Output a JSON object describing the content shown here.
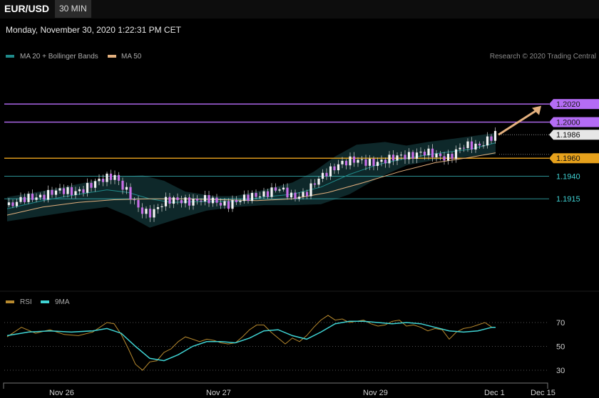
{
  "header": {
    "symbol": "EUR/USD",
    "timeframe": "30 MIN"
  },
  "timestamp": "Monday, November 30, 2020 1:22:31 PM CET",
  "legend": {
    "main": [
      {
        "label": "MA 20 + Bollinger Bands",
        "color": "#1f8a8a"
      },
      {
        "label": "MA 50",
        "color": "#e3b07e"
      }
    ],
    "rsi": [
      {
        "label": "RSI",
        "color": "#b88a2e"
      },
      {
        "label": "9MA",
        "color": "#3fd4d4"
      }
    ]
  },
  "watermark": "Research © 2020 Trading Central",
  "chart_data": {
    "type": "line",
    "instrument": "EUR/USD",
    "interval": "30 MIN",
    "price_axis": {
      "min": 1.183,
      "max": 1.2056
    },
    "levels": [
      {
        "value": 1.202,
        "label": "1.2020",
        "color": "#b46cf5",
        "kind": "resistance"
      },
      {
        "value": 1.2,
        "label": "1.2000",
        "color": "#b46cf5",
        "kind": "resistance"
      },
      {
        "value": 1.1986,
        "label": "1.1986",
        "color": "#dddddd",
        "kind": "current"
      },
      {
        "value": 1.196,
        "label": "1.1960",
        "color": "#e6a11c",
        "kind": "pivot"
      },
      {
        "value": 1.194,
        "label": "1.1940",
        "color": "#3ecfd1",
        "kind": "support"
      },
      {
        "value": 1.1915,
        "label": "1.1915",
        "color": "#3ecfd1",
        "kind": "support"
      }
    ],
    "price_path": [
      [
        0,
        1.1908
      ],
      [
        6,
        1.1915
      ],
      [
        12,
        1.1922
      ],
      [
        18,
        1.1923
      ],
      [
        24,
        1.193
      ],
      [
        30,
        1.1943
      ],
      [
        34,
        1.192
      ],
      [
        37,
        1.1902
      ],
      [
        40,
        1.19
      ],
      [
        44,
        1.1911
      ],
      [
        50,
        1.1914
      ],
      [
        56,
        1.1913
      ],
      [
        62,
        1.191
      ],
      [
        66,
        1.1913
      ],
      [
        70,
        1.192
      ],
      [
        76,
        1.1925
      ],
      [
        80,
        1.1918
      ],
      [
        84,
        1.1922
      ],
      [
        90,
        1.1946
      ],
      [
        93,
        1.1955
      ],
      [
        97,
        1.1956
      ],
      [
        102,
        1.1957
      ],
      [
        104,
        1.1956
      ],
      [
        107,
        1.1957
      ],
      [
        111,
        1.1964
      ],
      [
        116,
        1.1965
      ],
      [
        119,
        1.1964
      ],
      [
        124,
        1.1962
      ],
      [
        128,
        1.1972
      ],
      [
        132,
        1.1975
      ],
      [
        137,
        1.1986
      ]
    ],
    "ma50": [
      [
        0,
        1.1897
      ],
      [
        10,
        1.1906
      ],
      [
        20,
        1.1911
      ],
      [
        30,
        1.1914
      ],
      [
        40,
        1.1915
      ],
      [
        50,
        1.1915
      ],
      [
        60,
        1.1914
      ],
      [
        70,
        1.1913
      ],
      [
        80,
        1.1915
      ],
      [
        90,
        1.1922
      ],
      [
        100,
        1.1933
      ],
      [
        110,
        1.1945
      ],
      [
        120,
        1.1955
      ],
      [
        130,
        1.1961
      ],
      [
        137,
        1.1966
      ]
    ],
    "ma20": [
      [
        0,
        1.1904
      ],
      [
        10,
        1.1913
      ],
      [
        20,
        1.192
      ],
      [
        28,
        1.1925
      ],
      [
        34,
        1.1922
      ],
      [
        40,
        1.1915
      ],
      [
        46,
        1.1911
      ],
      [
        56,
        1.1912
      ],
      [
        64,
        1.1912
      ],
      [
        72,
        1.1917
      ],
      [
        80,
        1.192
      ],
      [
        88,
        1.1928
      ],
      [
        96,
        1.1942
      ],
      [
        104,
        1.1953
      ],
      [
        112,
        1.196
      ],
      [
        120,
        1.1965
      ],
      [
        130,
        1.197
      ],
      [
        137,
        1.1977
      ]
    ],
    "bb_upper": [
      [
        0,
        1.1917
      ],
      [
        12,
        1.1925
      ],
      [
        22,
        1.1933
      ],
      [
        30,
        1.1939
      ],
      [
        38,
        1.1941
      ],
      [
        44,
        1.1935
      ],
      [
        50,
        1.1923
      ],
      [
        58,
        1.1918
      ],
      [
        64,
        1.1918
      ],
      [
        72,
        1.1925
      ],
      [
        80,
        1.1933
      ],
      [
        86,
        1.1945
      ],
      [
        92,
        1.1962
      ],
      [
        98,
        1.1975
      ],
      [
        106,
        1.1978
      ],
      [
        112,
        1.1974
      ],
      [
        118,
        1.1978
      ],
      [
        126,
        1.1982
      ],
      [
        137,
        1.1988
      ]
    ],
    "bb_lower": [
      [
        0,
        1.189
      ],
      [
        10,
        1.1896
      ],
      [
        20,
        1.1902
      ],
      [
        28,
        1.1906
      ],
      [
        34,
        1.1896
      ],
      [
        40,
        1.1883
      ],
      [
        48,
        1.1893
      ],
      [
        56,
        1.1902
      ],
      [
        64,
        1.1906
      ],
      [
        72,
        1.1908
      ],
      [
        80,
        1.1908
      ],
      [
        88,
        1.1909
      ],
      [
        96,
        1.192
      ],
      [
        104,
        1.1938
      ],
      [
        112,
        1.1952
      ],
      [
        120,
        1.1958
      ],
      [
        130,
        1.1962
      ],
      [
        137,
        1.1964
      ]
    ],
    "projection": {
      "from": [
        137,
        1.1986
      ],
      "to": [
        149,
        1.2018
      ]
    },
    "time_axis": {
      "ticks": [
        {
          "label": "Nov 26",
          "x": 15
        },
        {
          "label": "Nov 27",
          "x": 59
        },
        {
          "label": "Nov 29",
          "x": 103
        },
        {
          "label": "Dec 1",
          "x": 137
        },
        {
          "label": "Dec 15",
          "x": 150
        }
      ]
    },
    "rsi_axis": {
      "min": 22,
      "max": 80,
      "ticks": [
        70,
        50,
        30
      ]
    },
    "rsi": [
      [
        0,
        58
      ],
      [
        4,
        66
      ],
      [
        8,
        61
      ],
      [
        12,
        64
      ],
      [
        16,
        60
      ],
      [
        20,
        59
      ],
      [
        24,
        62
      ],
      [
        28,
        70
      ],
      [
        30,
        69
      ],
      [
        32,
        60
      ],
      [
        34,
        48
      ],
      [
        36,
        35
      ],
      [
        38,
        30
      ],
      [
        40,
        37
      ],
      [
        42,
        38
      ],
      [
        44,
        45
      ],
      [
        46,
        48
      ],
      [
        48,
        54
      ],
      [
        50,
        58
      ],
      [
        52,
        56
      ],
      [
        54,
        54
      ],
      [
        56,
        56
      ],
      [
        58,
        55
      ],
      [
        60,
        53
      ],
      [
        62,
        52
      ],
      [
        64,
        53
      ],
      [
        66,
        58
      ],
      [
        68,
        64
      ],
      [
        70,
        68
      ],
      [
        72,
        68
      ],
      [
        74,
        62
      ],
      [
        76,
        57
      ],
      [
        78,
        52
      ],
      [
        80,
        57
      ],
      [
        82,
        54
      ],
      [
        84,
        59
      ],
      [
        86,
        66
      ],
      [
        88,
        72
      ],
      [
        90,
        76
      ],
      [
        92,
        72
      ],
      [
        94,
        73
      ],
      [
        96,
        70
      ],
      [
        98,
        71
      ],
      [
        100,
        72
      ],
      [
        102,
        69
      ],
      [
        104,
        67
      ],
      [
        106,
        68
      ],
      [
        108,
        71
      ],
      [
        110,
        72
      ],
      [
        112,
        67
      ],
      [
        114,
        68
      ],
      [
        116,
        66
      ],
      [
        118,
        63
      ],
      [
        120,
        65
      ],
      [
        122,
        64
      ],
      [
        124,
        56
      ],
      [
        126,
        62
      ],
      [
        128,
        65
      ],
      [
        130,
        66
      ],
      [
        132,
        68
      ],
      [
        134,
        70
      ],
      [
        136,
        66
      ],
      [
        137,
        66
      ]
    ],
    "rsi_ma9": [
      [
        0,
        59
      ],
      [
        6,
        62
      ],
      [
        12,
        63
      ],
      [
        18,
        62
      ],
      [
        24,
        63
      ],
      [
        28,
        65
      ],
      [
        32,
        61
      ],
      [
        36,
        50
      ],
      [
        40,
        40
      ],
      [
        44,
        38
      ],
      [
        48,
        43
      ],
      [
        52,
        50
      ],
      [
        56,
        54
      ],
      [
        60,
        54
      ],
      [
        64,
        53
      ],
      [
        68,
        57
      ],
      [
        72,
        63
      ],
      [
        76,
        64
      ],
      [
        80,
        59
      ],
      [
        84,
        56
      ],
      [
        88,
        62
      ],
      [
        92,
        69
      ],
      [
        96,
        71
      ],
      [
        100,
        71
      ],
      [
        104,
        70
      ],
      [
        108,
        69
      ],
      [
        112,
        70
      ],
      [
        116,
        69
      ],
      [
        120,
        66
      ],
      [
        124,
        63
      ],
      [
        128,
        62
      ],
      [
        132,
        63
      ],
      [
        136,
        66
      ],
      [
        137,
        66
      ]
    ]
  }
}
